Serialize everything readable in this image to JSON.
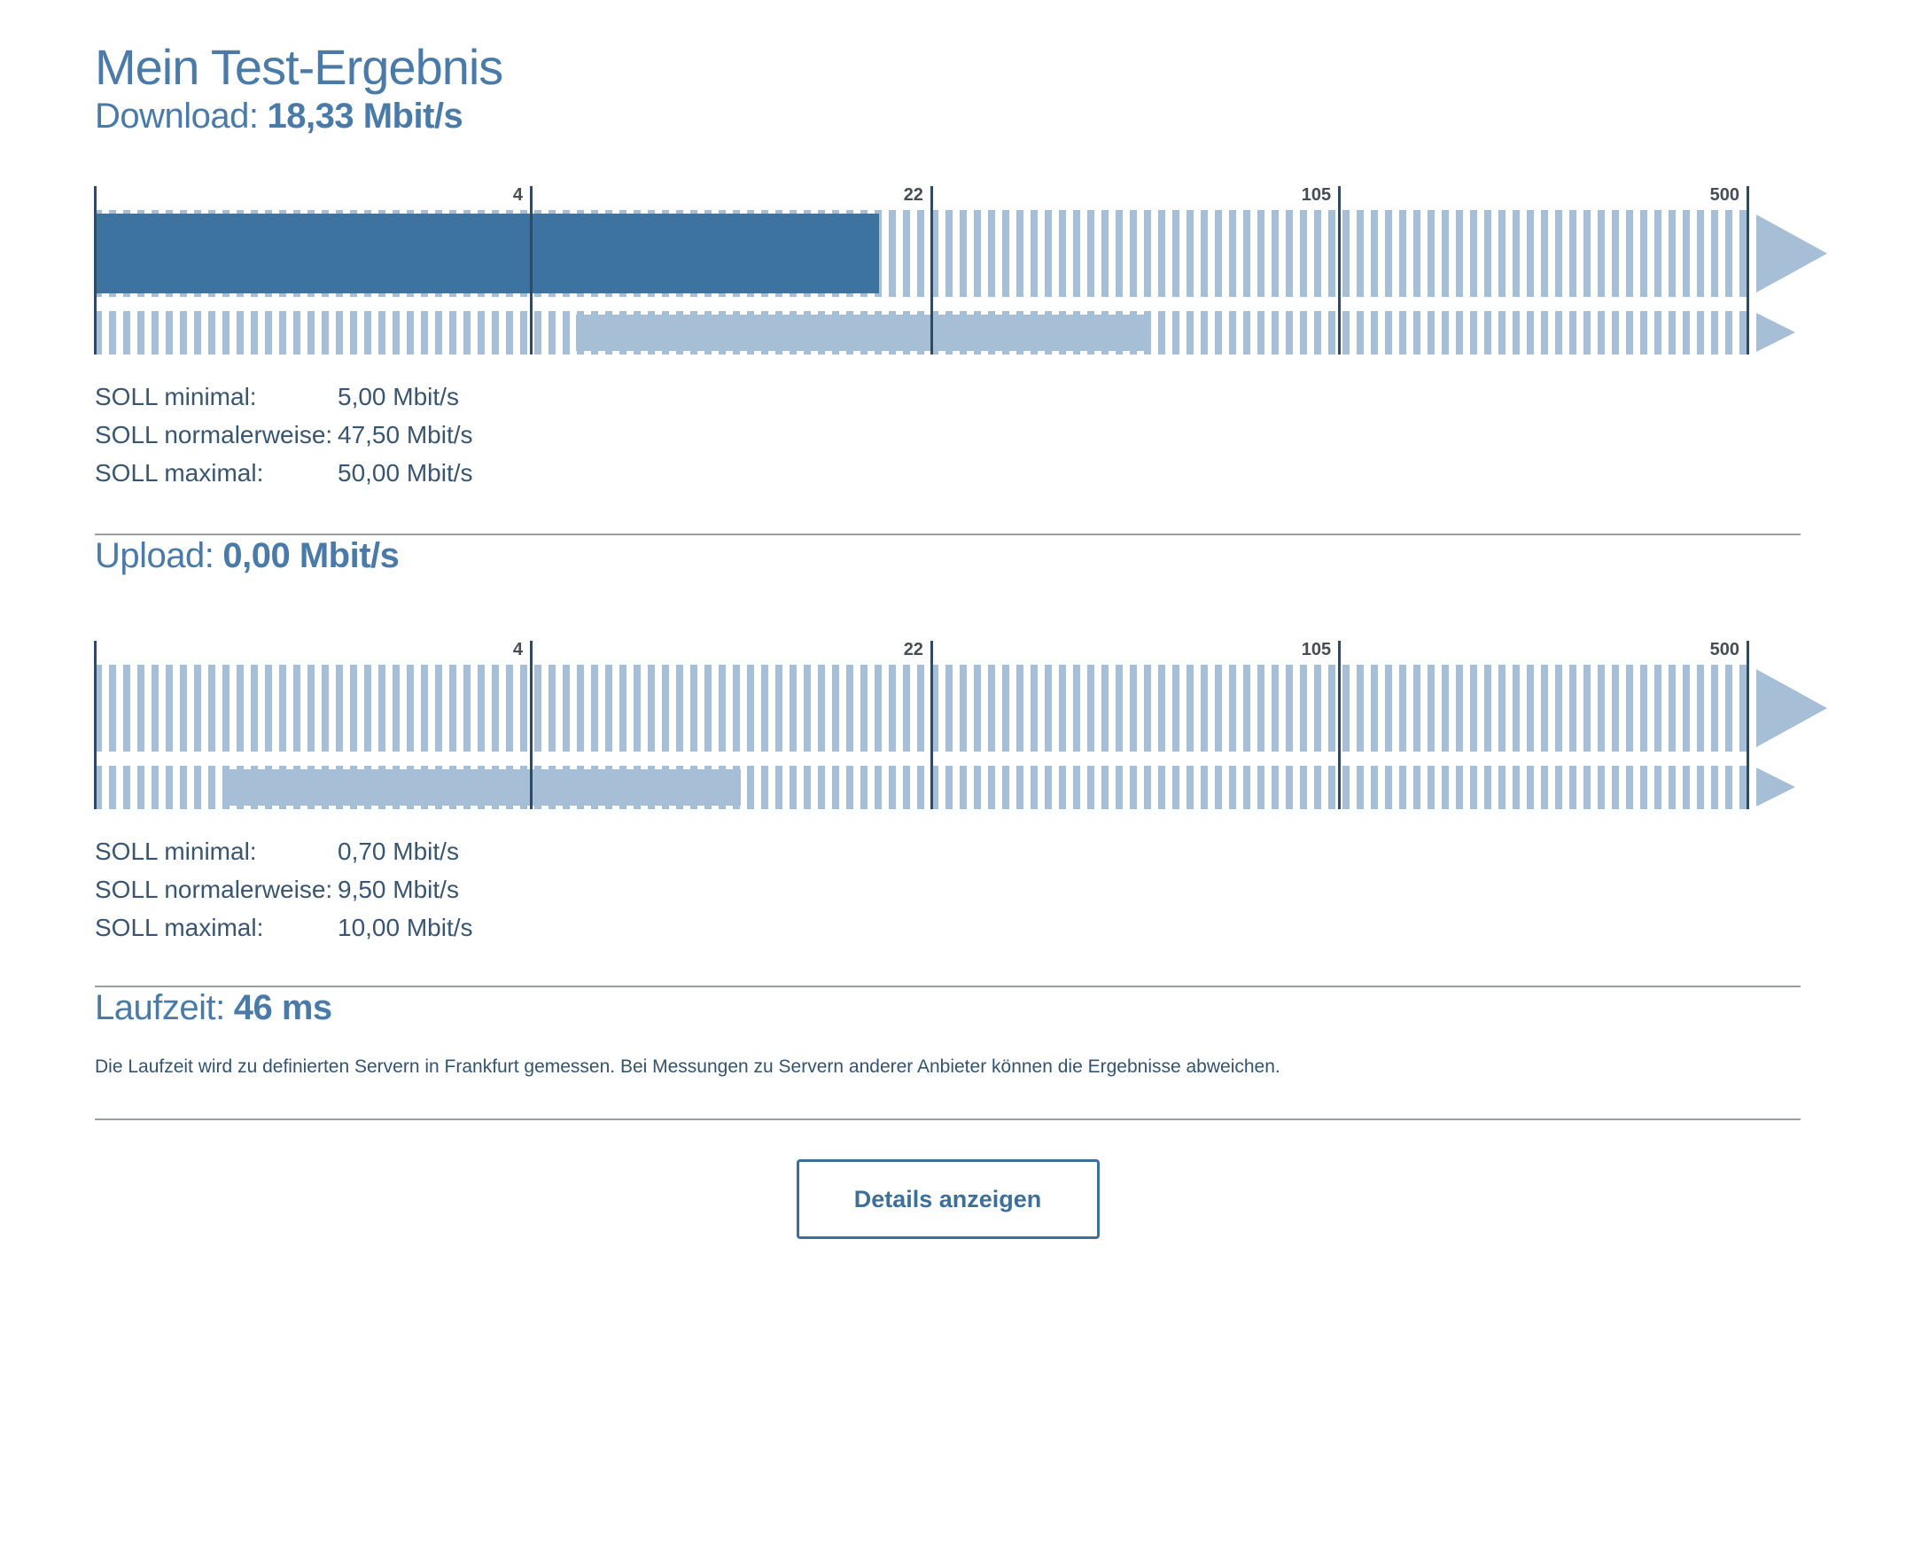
{
  "page": {
    "title": "Mein Test-Ergebnis"
  },
  "download": {
    "label": "Download:",
    "value": "18,33 Mbit/s",
    "soll": [
      {
        "label": "SOLL minimal:",
        "value": "5,00 Mbit/s"
      },
      {
        "label": "SOLL normalerweise:",
        "value": "47,50 Mbit/s"
      },
      {
        "label": "SOLL maximal:",
        "value": "50,00 Mbit/s"
      }
    ]
  },
  "upload": {
    "label": "Upload:",
    "value": "0,00 Mbit/s",
    "soll": [
      {
        "label": "SOLL minimal:",
        "value": "0,70 Mbit/s"
      },
      {
        "label": "SOLL normalerweise:",
        "value": "9,50 Mbit/s"
      },
      {
        "label": "SOLL maximal:",
        "value": "10,00 Mbit/s"
      }
    ]
  },
  "laufzeit": {
    "label": "Laufzeit:",
    "value": "46 ms",
    "note": "Die Laufzeit wird zu definierten Servern in Frankfurt gemessen. Bei Messungen zu Servern anderer Anbieter können die Ergebnisse abweichen."
  },
  "button": {
    "label": "Details anzeigen"
  },
  "colors": {
    "heading_blue": "#4A7AA8",
    "bar_dark_blue": "#3D73A1",
    "bar_light_blue": "#A7BFD6",
    "axis_line": "#2D4B64",
    "tick_label": "#464D55",
    "soll_text": "#395570",
    "note_text": "#33536E",
    "divider": "#9A9EA1",
    "button_blue": "#3E6F99",
    "background": "#FFFFFF"
  },
  "chart_data": [
    {
      "type": "bar",
      "title": "Download",
      "unit": "Mbit/s",
      "scale": "log",
      "axis_ticks": [
        4,
        22,
        105,
        500
      ],
      "tick_pct": [
        26.42,
        50.64,
        75.3,
        100
      ],
      "measured_value": 18.33,
      "measured_bar_pct": [
        0,
        47.43
      ],
      "soll_minimal": 5.0,
      "soll_normalerweise": 47.5,
      "soll_maximal": 50.0,
      "soll_bar_pct": [
        29.1,
        63.61
      ],
      "legend": "row1 = gemessener Wert (dunkelblau), row2 = SOLL-Bereich (hellblau), gestreifte Spur = Skala bis >500"
    },
    {
      "type": "bar",
      "title": "Upload",
      "unit": "Mbit/s",
      "scale": "log",
      "axis_ticks": [
        4,
        22,
        105,
        500
      ],
      "tick_pct": [
        26.42,
        50.64,
        75.3,
        100
      ],
      "measured_value": 0.0,
      "measured_bar_pct": [
        0,
        0
      ],
      "soll_minimal": 0.7,
      "soll_normalerweise": 9.5,
      "soll_maximal": 10.0,
      "soll_bar_pct": [
        8.09,
        39.07
      ],
      "legend": "row1 = gemessener Wert (dunkelblau), row2 = SOLL-Bereich (hellblau), gestreifte Spur = Skala bis >500"
    }
  ]
}
